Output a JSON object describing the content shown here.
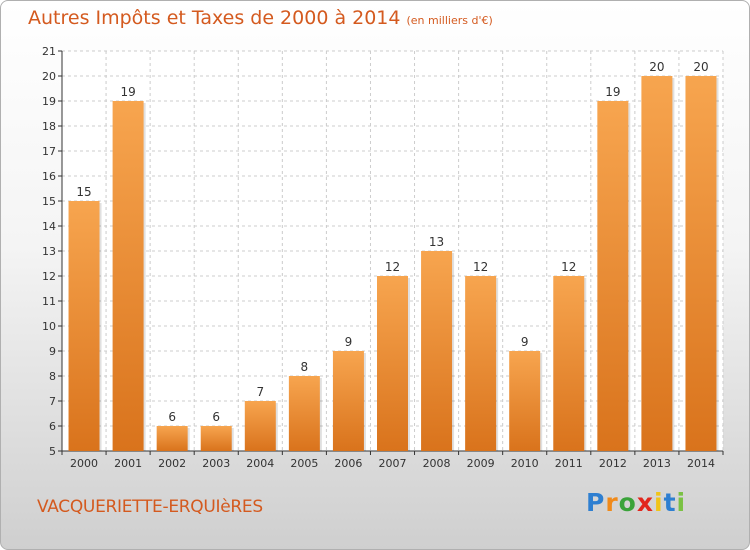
{
  "header": {
    "title": "Autres Impôts et Taxes de 2000 à 2014",
    "subtitle": "(en milliers d'€)"
  },
  "footer": {
    "commune": "VACQUERIETTE-ERQUIèRES"
  },
  "logo": {
    "letters": [
      "P",
      "r",
      "o",
      "x",
      "i",
      "t",
      "i"
    ],
    "colors": [
      "#2e7fd1",
      "#f08a1a",
      "#3aa33a",
      "#e2261c",
      "#f0c419",
      "#2e7fd1",
      "#7ac143"
    ]
  },
  "chart_data": {
    "type": "bar",
    "title": "Autres Impôts et Taxes de 2000 à 2014",
    "subtitle": "(en milliers d'€)",
    "categories": [
      "2000",
      "2001",
      "2002",
      "2003",
      "2004",
      "2005",
      "2006",
      "2007",
      "2008",
      "2009",
      "2010",
      "2011",
      "2012",
      "2013",
      "2014"
    ],
    "values": [
      15,
      19,
      6,
      6,
      7,
      8,
      9,
      12,
      13,
      12,
      9,
      12,
      19,
      20,
      20
    ],
    "yticks": [
      5,
      6,
      7,
      8,
      9,
      10,
      11,
      12,
      13,
      14,
      15,
      16,
      17,
      18,
      19,
      20,
      21
    ],
    "ylim": [
      5,
      21
    ],
    "grid": true,
    "bar_color": "#f29a3f",
    "xlabel": "",
    "ylabel": ""
  }
}
